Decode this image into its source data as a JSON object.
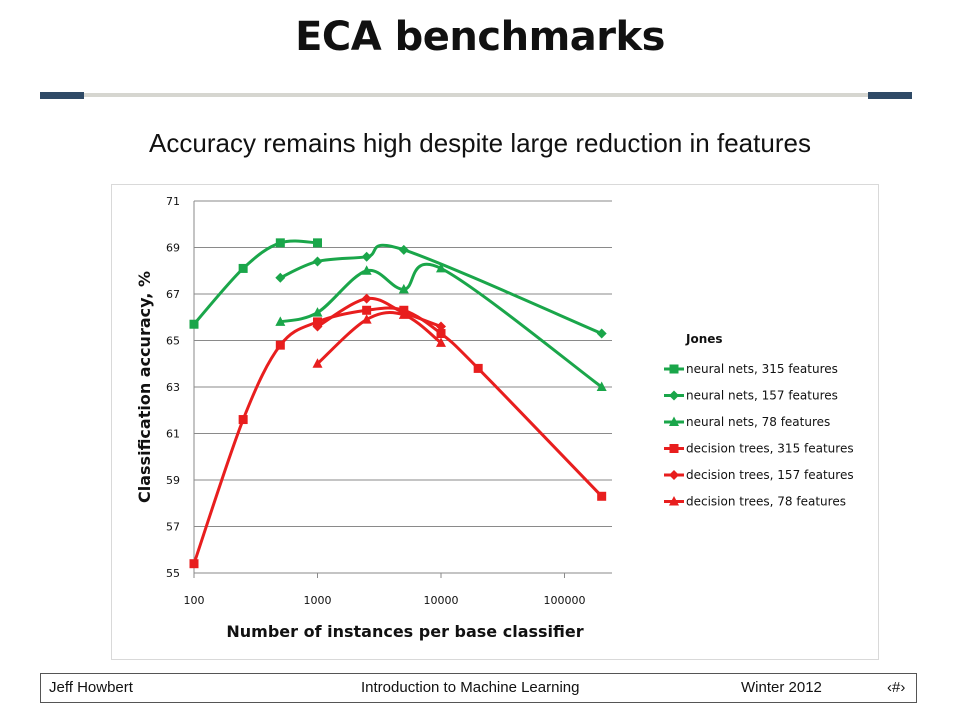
{
  "slide": {
    "title": "ECA benchmarks",
    "subtitle": "Accuracy remains high despite large reduction in features"
  },
  "footer": {
    "author": "Jeff Howbert",
    "course": "Introduction to Machine Learning",
    "term": "Winter 2012",
    "page": "‹#›"
  },
  "chart_data": {
    "type": "line",
    "xscale": "log",
    "xlabel": "Number of instances per base classifier",
    "ylabel": "Classification accuracy, %",
    "xticks": [
      "100",
      "1000",
      "10000",
      "100000"
    ],
    "yticks": [
      "55",
      "57",
      "59",
      "61",
      "63",
      "65",
      "67",
      "69",
      "71"
    ],
    "xlim": [
      100,
      200000
    ],
    "ylim": [
      55,
      71
    ],
    "grid": "horizontal",
    "legend_title": "Jones",
    "legend_position": "right",
    "series": [
      {
        "name": "neural nets, 315 features",
        "color": "#1aa64a",
        "marker": "square",
        "x": [
          100,
          250,
          500,
          1000
        ],
        "y": [
          65.7,
          68.1,
          69.2,
          69.2
        ]
      },
      {
        "name": "neural nets, 157 features",
        "color": "#1aa64a",
        "marker": "diamond",
        "x": [
          500,
          1000,
          2500,
          5000,
          200000
        ],
        "y": [
          67.7,
          68.4,
          68.6,
          68.9,
          65.3
        ]
      },
      {
        "name": "neural nets, 78 features",
        "color": "#1aa64a",
        "marker": "triangle",
        "x": [
          500,
          1000,
          2500,
          5000,
          10000,
          200000
        ],
        "y": [
          65.8,
          66.2,
          68.0,
          67.2,
          68.1,
          63.0
        ]
      },
      {
        "name": "decision trees, 315 features",
        "color": "#e81e1e",
        "marker": "square",
        "x": [
          100,
          250,
          500,
          1000,
          2500,
          5000,
          10000,
          20000,
          200000
        ],
        "y": [
          55.4,
          61.6,
          64.8,
          65.8,
          66.3,
          66.3,
          65.3,
          63.8,
          58.3
        ]
      },
      {
        "name": "decision trees, 157 features",
        "color": "#e81e1e",
        "marker": "diamond",
        "x": [
          1000,
          2500,
          5000,
          10000
        ],
        "y": [
          65.6,
          66.8,
          66.2,
          65.6
        ]
      },
      {
        "name": "decision trees, 78 features",
        "color": "#e81e1e",
        "marker": "triangle",
        "x": [
          1000,
          2500,
          5000,
          10000
        ],
        "y": [
          64.0,
          65.9,
          66.1,
          64.9
        ]
      }
    ]
  }
}
